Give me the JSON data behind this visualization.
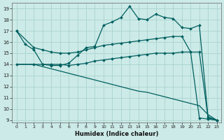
{
  "xlabel": "Humidex (Indice chaleur)",
  "bg_color": "#cceae7",
  "grid_color": "#aad4d0",
  "line_color": "#006060",
  "xlim": [
    -0.5,
    23.5
  ],
  "ylim": [
    8.8,
    19.5
  ],
  "yticks": [
    9,
    10,
    11,
    12,
    13,
    14,
    15,
    16,
    17,
    18,
    19
  ],
  "xticks": [
    0,
    1,
    2,
    3,
    4,
    5,
    6,
    7,
    8,
    9,
    10,
    11,
    12,
    13,
    14,
    15,
    16,
    17,
    18,
    19,
    20,
    21,
    22,
    23
  ],
  "line1_x": [
    0,
    1,
    2,
    3,
    4,
    5,
    6,
    7,
    8,
    9,
    10,
    11,
    12,
    13,
    14,
    15,
    16,
    17,
    18,
    19,
    20,
    21,
    22,
    23
  ],
  "line1_y": [
    17.0,
    15.8,
    15.3,
    14.0,
    13.9,
    13.9,
    14.1,
    14.8,
    15.5,
    15.6,
    17.5,
    17.8,
    18.2,
    19.2,
    18.1,
    18.0,
    18.5,
    18.2,
    18.1,
    17.3,
    17.2,
    17.5,
    9.3,
    9.0
  ],
  "line2_x": [
    0,
    2,
    3,
    4,
    5,
    6,
    7,
    8,
    9,
    10,
    11,
    12,
    13,
    14,
    15,
    16,
    17,
    18,
    19,
    20,
    21,
    22,
    23
  ],
  "line2_y": [
    17.0,
    15.5,
    15.3,
    15.1,
    15.0,
    15.0,
    15.1,
    15.3,
    15.5,
    15.7,
    15.8,
    15.9,
    16.0,
    16.1,
    16.2,
    16.3,
    16.4,
    16.5,
    16.5,
    15.1,
    15.1,
    9.2,
    9.0
  ],
  "line3_x": [
    0,
    2,
    3,
    4,
    5,
    6,
    7,
    8,
    9,
    10,
    11,
    12,
    13,
    14,
    15,
    16,
    17,
    18,
    19,
    20,
    21,
    22,
    23
  ],
  "line3_y": [
    14.0,
    14.0,
    14.0,
    14.0,
    14.0,
    13.9,
    14.0,
    14.1,
    14.3,
    14.4,
    14.5,
    14.6,
    14.7,
    14.8,
    14.9,
    15.0,
    15.0,
    15.0,
    15.1,
    15.1,
    9.2,
    9.1,
    9.0
  ],
  "line4_x": [
    0,
    2,
    3,
    4,
    5,
    6,
    7,
    8,
    9,
    10,
    11,
    12,
    13,
    14,
    15,
    16,
    17,
    18,
    19,
    20,
    21,
    22,
    23
  ],
  "line4_y": [
    14.0,
    14.0,
    13.8,
    13.6,
    13.4,
    13.2,
    13.0,
    12.8,
    12.6,
    12.4,
    12.2,
    12.0,
    11.8,
    11.6,
    11.5,
    11.3,
    11.1,
    10.9,
    10.7,
    10.5,
    10.3,
    9.5,
    9.0
  ],
  "marker": "D",
  "ms1": 2.0,
  "ms2": 2.0,
  "ms3": 2.0
}
